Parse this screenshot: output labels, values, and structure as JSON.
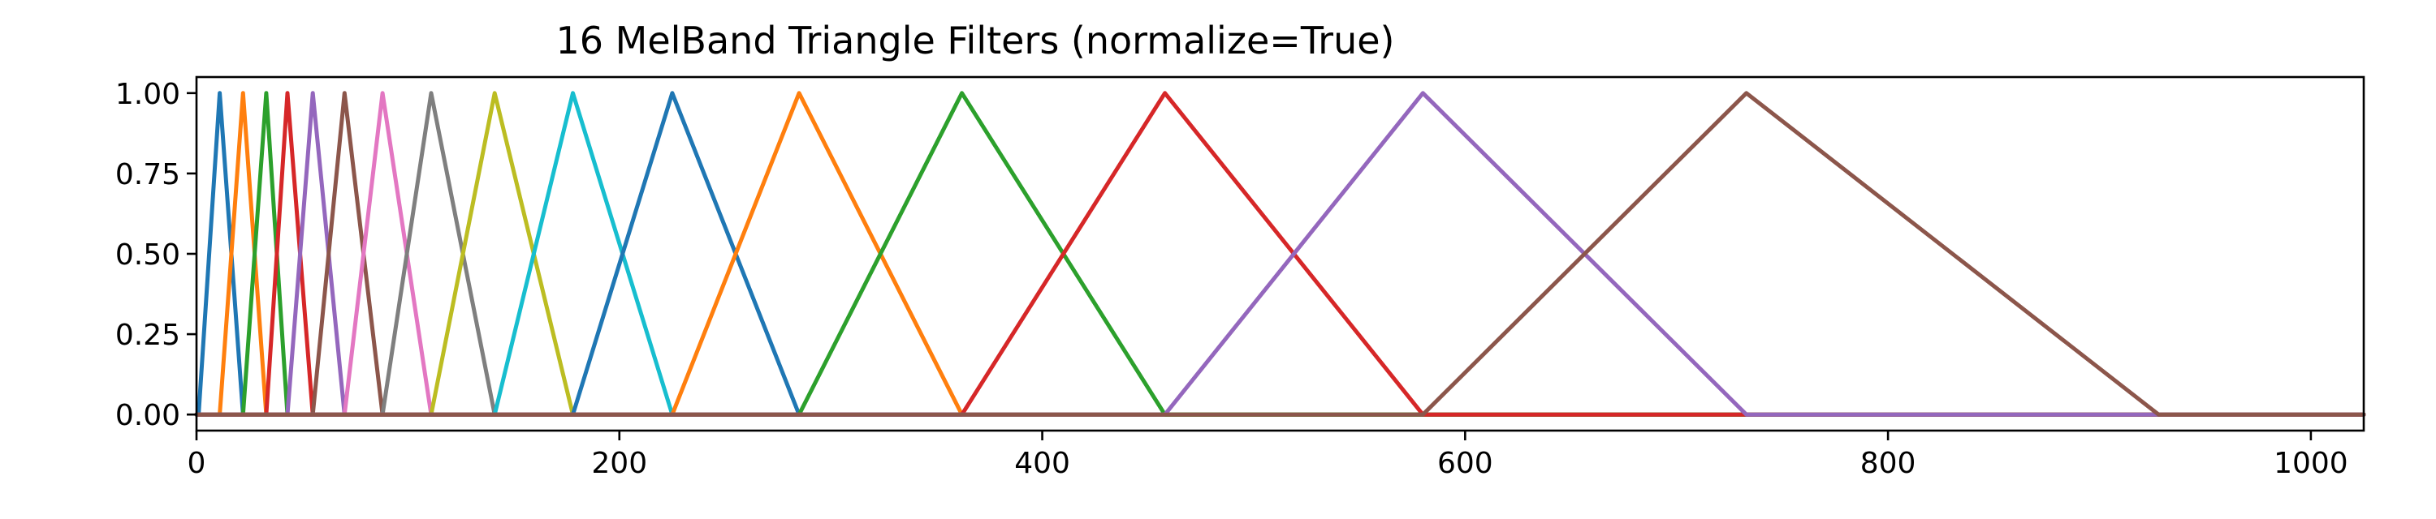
{
  "chart_data": {
    "type": "line",
    "title": "16 MelBand Triangle Filters (normalize=True)",
    "xlabel": "",
    "ylabel": "",
    "xlim": [
      0,
      1025
    ],
    "ylim": [
      -0.05,
      1.05
    ],
    "grid": false,
    "x_ticks": [
      0,
      200,
      400,
      600,
      800,
      1000
    ],
    "x_tick_labels": [
      "0",
      "200",
      "400",
      "600",
      "800",
      "1000"
    ],
    "y_ticks": [
      0,
      0.25,
      0.5,
      0.75,
      1.0
    ],
    "y_tick_labels": [
      "0.00",
      "0.25",
      "0.50",
      "0.75",
      "1.00"
    ],
    "series": [
      {
        "color": "#1f77b4",
        "points": [
          [
            0,
            0
          ],
          [
            1,
            0
          ],
          [
            11,
            1
          ],
          [
            22,
            0
          ],
          [
            1025,
            0
          ]
        ]
      },
      {
        "color": "#ff7f0e",
        "points": [
          [
            0,
            0
          ],
          [
            11,
            0
          ],
          [
            22,
            1
          ],
          [
            33,
            0
          ],
          [
            1025,
            0
          ]
        ]
      },
      {
        "color": "#2ca02c",
        "points": [
          [
            0,
            0
          ],
          [
            22,
            0
          ],
          [
            33,
            1
          ],
          [
            43,
            0
          ],
          [
            1025,
            0
          ]
        ]
      },
      {
        "color": "#d62728",
        "points": [
          [
            0,
            0
          ],
          [
            33,
            0
          ],
          [
            43,
            1
          ],
          [
            55,
            0
          ],
          [
            1025,
            0
          ]
        ]
      },
      {
        "color": "#9467bd",
        "points": [
          [
            0,
            0
          ],
          [
            43,
            0
          ],
          [
            55,
            1
          ],
          [
            70,
            0
          ],
          [
            1025,
            0
          ]
        ]
      },
      {
        "color": "#8c564b",
        "points": [
          [
            0,
            0
          ],
          [
            55,
            0
          ],
          [
            70,
            1
          ],
          [
            88,
            0
          ],
          [
            1025,
            0
          ]
        ]
      },
      {
        "color": "#e377c2",
        "points": [
          [
            0,
            0
          ],
          [
            70,
            0
          ],
          [
            88,
            1
          ],
          [
            111,
            0
          ],
          [
            1025,
            0
          ]
        ]
      },
      {
        "color": "#7f7f7f",
        "points": [
          [
            0,
            0
          ],
          [
            88,
            0
          ],
          [
            111,
            1
          ],
          [
            141,
            0
          ],
          [
            1025,
            0
          ]
        ]
      },
      {
        "color": "#bcbd22",
        "points": [
          [
            0,
            0
          ],
          [
            111,
            0
          ],
          [
            141,
            1
          ],
          [
            178,
            0
          ],
          [
            1025,
            0
          ]
        ]
      },
      {
        "color": "#17becf",
        "points": [
          [
            0,
            0
          ],
          [
            141,
            0
          ],
          [
            178,
            1
          ],
          [
            225,
            0
          ],
          [
            1025,
            0
          ]
        ]
      },
      {
        "color": "#1f77b4",
        "points": [
          [
            0,
            0
          ],
          [
            178,
            0
          ],
          [
            225,
            1
          ],
          [
            285,
            0
          ],
          [
            1025,
            0
          ]
        ]
      },
      {
        "color": "#ff7f0e",
        "points": [
          [
            0,
            0
          ],
          [
            225,
            0
          ],
          [
            285,
            1
          ],
          [
            362,
            0
          ],
          [
            1025,
            0
          ]
        ]
      },
      {
        "color": "#2ca02c",
        "points": [
          [
            0,
            0
          ],
          [
            285,
            0
          ],
          [
            362,
            1
          ],
          [
            458,
            0
          ],
          [
            1025,
            0
          ]
        ]
      },
      {
        "color": "#d62728",
        "points": [
          [
            0,
            0
          ],
          [
            362,
            0
          ],
          [
            458,
            1
          ],
          [
            580,
            0
          ],
          [
            1025,
            0
          ]
        ]
      },
      {
        "color": "#9467bd",
        "points": [
          [
            0,
            0
          ],
          [
            458,
            0
          ],
          [
            580,
            1
          ],
          [
            733,
            0
          ],
          [
            1025,
            0
          ]
        ]
      },
      {
        "color": "#8c564b",
        "points": [
          [
            0,
            0
          ],
          [
            580,
            0
          ],
          [
            733,
            1
          ],
          [
            928,
            0
          ],
          [
            1025,
            0
          ]
        ]
      }
    ]
  }
}
